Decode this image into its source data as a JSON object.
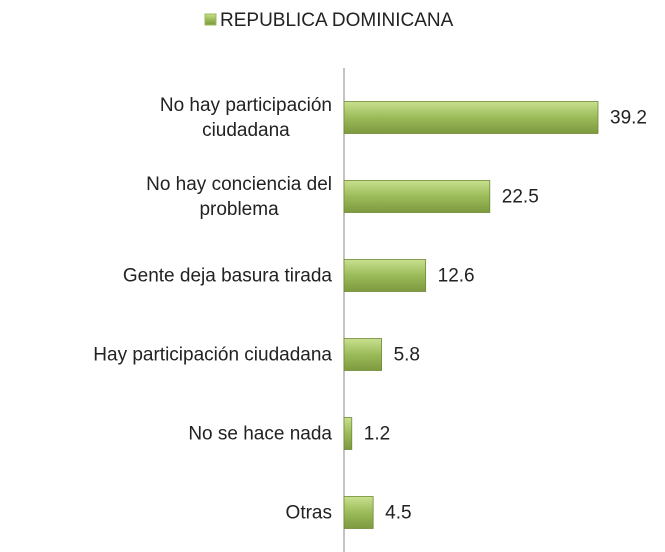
{
  "chart_data": {
    "type": "bar",
    "orientation": "horizontal",
    "categories": [
      "No hay participación\nciudadana",
      "No hay conciencia del\nproblema",
      "Gente deja basura tirada",
      "Hay participación ciudadana",
      "No se hace nada",
      "Otras"
    ],
    "series": [
      {
        "name": "REPUBLICA DOMINICANA",
        "color": "#9bbb59",
        "values": [
          39.2,
          22.5,
          12.6,
          5.8,
          1.2,
          4.5
        ]
      }
    ]
  }
}
